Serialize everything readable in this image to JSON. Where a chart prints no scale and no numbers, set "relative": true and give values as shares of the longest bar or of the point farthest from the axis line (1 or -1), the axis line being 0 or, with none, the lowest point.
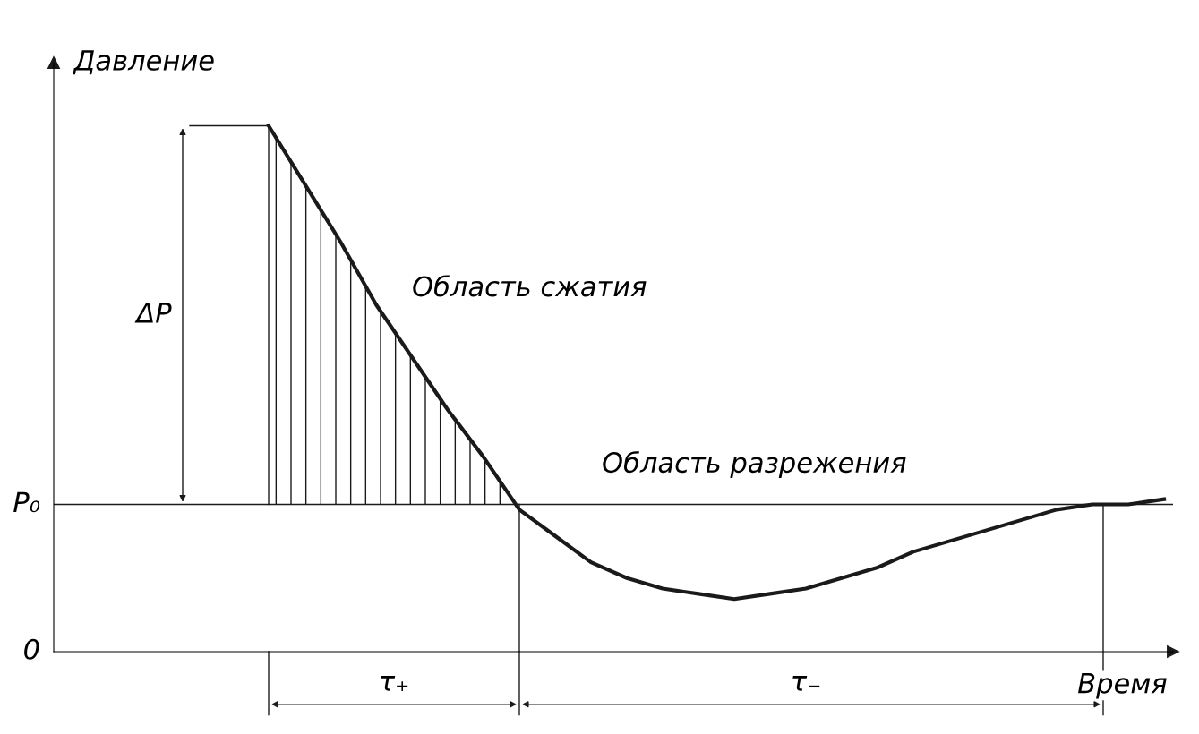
{
  "chart_data": {
    "type": "line",
    "relative": true,
    "xlabel": "Время",
    "ylabel": "Давление",
    "categories": [
      null,
      null,
      null,
      null,
      null,
      null,
      null,
      null,
      null,
      null,
      null,
      null,
      null,
      null,
      null,
      null,
      null,
      null,
      null,
      null,
      null,
      null,
      null,
      null,
      null,
      null,
      null,
      null,
      null,
      null,
      null,
      null
    ],
    "series": [
      {
        "color": "#1a1a1a",
        "values": [
          null,
          null,
          null,
          null,
          null,
          null,
          1.0,
          0.89,
          0.78,
          0.66,
          0.56,
          0.46,
          0.37,
          0.27,
          0.22,
          0.17,
          0.14,
          0.12,
          0.11,
          0.1,
          0.11,
          0.12,
          0.14,
          0.16,
          0.19,
          0.21,
          0.23,
          0.25,
          0.27,
          0.28,
          0.28,
          0.29
        ]
      }
    ],
    "ref_lines": [
      {
        "axis": "y",
        "value": 0.28,
        "label": "P₀",
        "color": "#1a1a1a"
      }
    ],
    "annotations": [
      "0",
      "ΔP",
      "τ₊",
      "τ₋",
      "Область сжатия",
      "Область разрежения"
    ],
    "grid": false,
    "legend": false,
    "marker": "none",
    "line_style": "solid"
  }
}
